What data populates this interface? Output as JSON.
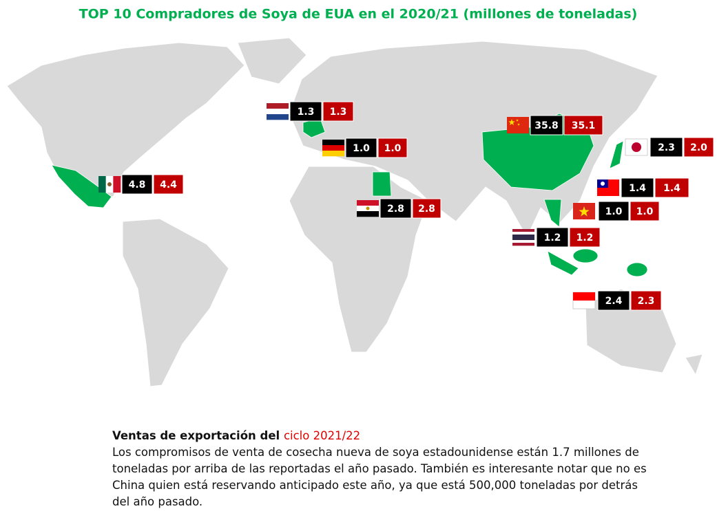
{
  "title": "TOP 10 Compradores de Soya de EUA en el 2020/21 (millones de toneladas)",
  "markers": [
    {
      "current": "1.3",
      "previous": "1.3"
    },
    {
      "current": "35.8",
      "previous": "35.1"
    },
    {
      "current": "2.3",
      "previous": "2.0"
    },
    {
      "current": "1.0",
      "previous": "1.0"
    },
    {
      "current": "4.8",
      "previous": "4.4"
    },
    {
      "current": "1.4",
      "previous": "1.4"
    },
    {
      "current": "2.8",
      "previous": "2.8"
    },
    {
      "current": "1.0",
      "previous": "1.0"
    },
    {
      "current": "1.2",
      "previous": "1.2"
    },
    {
      "current": "2.4",
      "previous": "2.3"
    }
  ],
  "note": {
    "heading": "Ventas de exportación del ",
    "heading_highlight": "ciclo 2021/22",
    "body": "Los compromisos de venta de cosecha nueva de soya estadounidense están 1.7 millones de toneladas por arriba de las reportadas el año pasado. También es interesante notar que no es China quien está reservando anticipado este año, ya que está 500,000 toneladas por detrás del año pasado."
  }
}
